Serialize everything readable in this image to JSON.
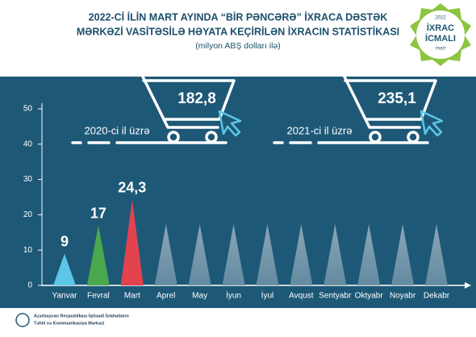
{
  "chart_data": {
    "type": "bar",
    "title": [
      "2022-Cİ İLİN MART AYINDA “BİR PƏNCƏRƏ” İXRACA DƏSTƏK",
      "MƏRKƏZİ VASİTƏSİLƏ HƏYATA KEÇİRİLƏN İXRACIN STATİSTİKASI"
    ],
    "subtitle": "(milyon ABŞ dolları ilə)",
    "categories": [
      "Yanvar",
      "Fevral",
      "Mart",
      "Aprel",
      "May",
      "İyun",
      "İyul",
      "Avqust",
      "Sentyabr",
      "Oktyabr",
      "Noyabr",
      "Dekabr"
    ],
    "values": [
      9,
      17,
      24.3,
      null,
      null,
      null,
      null,
      null,
      null,
      null,
      null,
      null
    ],
    "value_labels": [
      "9",
      "17",
      "24,3",
      null,
      null,
      null,
      null,
      null,
      null,
      null,
      null,
      null
    ],
    "colors": [
      "#5cc6e6",
      "#4aa84f",
      "#e2434e",
      null,
      null,
      null,
      null,
      null,
      null,
      null,
      null,
      null
    ],
    "ylim": [
      0,
      50
    ],
    "yticks": [
      0,
      10,
      20,
      30,
      40,
      50
    ],
    "annotations": [
      {
        "year": "2020-ci il üzrə",
        "total": "182,8"
      },
      {
        "year": "2021-ci il üzrə",
        "total": "235,1"
      }
    ],
    "badge": [
      "2022",
      "İXRAC",
      "İCMALI",
      "mart"
    ],
    "footer": [
      "Azərbaycan Respublikası İqtisadi İslahatların",
      "Təhlil və Kommunikasiya Mərkəzi"
    ]
  }
}
